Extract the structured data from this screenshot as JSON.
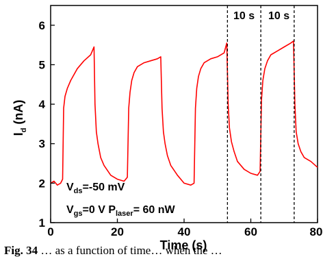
{
  "chart_data": {
    "type": "line",
    "xlabel": "Time (s)",
    "ylabel_main": "I",
    "ylabel_sub": "d",
    "ylabel_unit": " (nA)",
    "xlim": [
      0,
      80
    ],
    "ylim": [
      1,
      6.5
    ],
    "x_ticks": [
      "0",
      "20",
      "40",
      "60",
      "80"
    ],
    "x_tick_values": [
      0,
      20,
      40,
      60,
      80
    ],
    "y_ticks": [
      "1",
      "2",
      "3",
      "4",
      "5",
      "6"
    ],
    "y_tick_values": [
      1,
      2,
      3,
      4,
      5,
      6
    ],
    "grid": false,
    "line_color": "#ff0000",
    "series": [
      {
        "x": [
          0,
          1,
          2,
          3,
          3.6,
          3.9,
          4.3,
          5,
          6,
          8,
          10,
          12,
          13,
          13.3,
          13.7,
          14.2,
          15,
          16,
          18,
          20,
          22,
          23,
          23.4,
          23.8,
          24.3,
          25,
          26,
          28,
          30,
          32,
          33,
          33.4,
          33.8,
          34.3,
          35,
          36,
          38,
          40,
          42,
          43,
          43.4,
          43.8,
          44.3,
          45,
          46,
          48,
          50,
          52,
          52.8,
          53.2,
          53.6,
          54.2,
          55,
          56,
          58,
          60,
          62,
          62.8,
          63.2,
          63.6,
          64.2,
          65,
          66,
          68,
          70,
          72,
          72.8,
          73.2,
          73.6,
          74.2,
          75,
          76,
          78,
          80
        ],
        "y": [
          2.0,
          2.05,
          1.95,
          2.0,
          2.1,
          3.9,
          4.2,
          4.4,
          4.6,
          4.9,
          5.1,
          5.25,
          5.45,
          4.0,
          3.3,
          3.0,
          2.65,
          2.45,
          2.2,
          2.1,
          2.05,
          2.15,
          3.9,
          4.3,
          4.6,
          4.8,
          4.95,
          5.05,
          5.1,
          5.15,
          5.2,
          3.9,
          3.3,
          3.0,
          2.7,
          2.45,
          2.2,
          2.0,
          1.95,
          2.0,
          3.9,
          4.4,
          4.7,
          4.9,
          5.05,
          5.15,
          5.2,
          5.3,
          5.55,
          4.0,
          3.4,
          3.05,
          2.8,
          2.55,
          2.35,
          2.25,
          2.2,
          2.3,
          4.1,
          4.6,
          4.9,
          5.1,
          5.25,
          5.35,
          5.45,
          5.55,
          5.6,
          4.0,
          3.3,
          3.0,
          2.8,
          2.65,
          2.55,
          2.4
        ]
      }
    ],
    "vlines_x": [
      53,
      63,
      73
    ],
    "labels_10s": [
      "10 s",
      "10 s"
    ],
    "annotations": {
      "vds_main": "V",
      "vds_sub": "ds",
      "vds_value": "=-50 mV",
      "vgs_main": "V",
      "vgs_sub": "gs",
      "vgs_value": "=0 V P",
      "plaser_sub": "laser",
      "plaser_value": "= 60 nW"
    }
  },
  "caption": {
    "prefix": "Fig. 34",
    "text": "  … as a function of time… when the … "
  }
}
